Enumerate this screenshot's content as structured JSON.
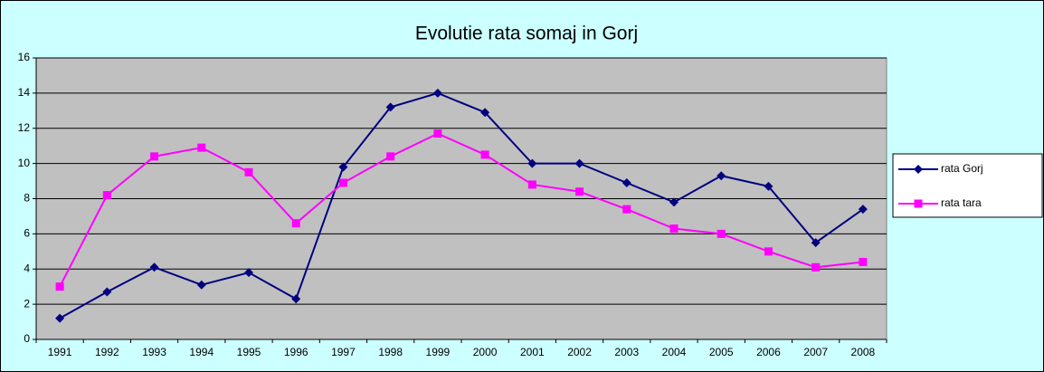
{
  "chart_data": {
    "type": "line",
    "title": "Evolutie rata somaj in Gorj",
    "categories": [
      "1991",
      "1992",
      "1993",
      "1994",
      "1995",
      "1996",
      "1997",
      "1998",
      "1999",
      "2000",
      "2001",
      "2002",
      "2003",
      "2004",
      "2005",
      "2006",
      "2007",
      "2008"
    ],
    "series": [
      {
        "name": "rata Gorj",
        "color": "#000080",
        "marker": "diamond",
        "values": [
          1.2,
          2.7,
          4.1,
          3.1,
          3.8,
          2.3,
          9.8,
          13.2,
          14.0,
          12.9,
          10.0,
          10.0,
          8.9,
          7.8,
          9.3,
          8.7,
          5.5,
          7.4
        ]
      },
      {
        "name": "rata tara",
        "color": "#ff00ff",
        "marker": "square",
        "values": [
          3.0,
          8.2,
          10.4,
          10.9,
          9.5,
          6.6,
          8.9,
          10.4,
          11.7,
          10.5,
          8.8,
          8.4,
          7.4,
          6.3,
          6.0,
          5.0,
          4.1,
          4.4
        ]
      }
    ],
    "ylim": [
      0,
      16
    ],
    "yticks": [
      0,
      2,
      4,
      6,
      8,
      10,
      12,
      14,
      16
    ],
    "grid": true,
    "legend": "right",
    "plot_background": "#c0c0c0",
    "background": "#ccffff"
  }
}
